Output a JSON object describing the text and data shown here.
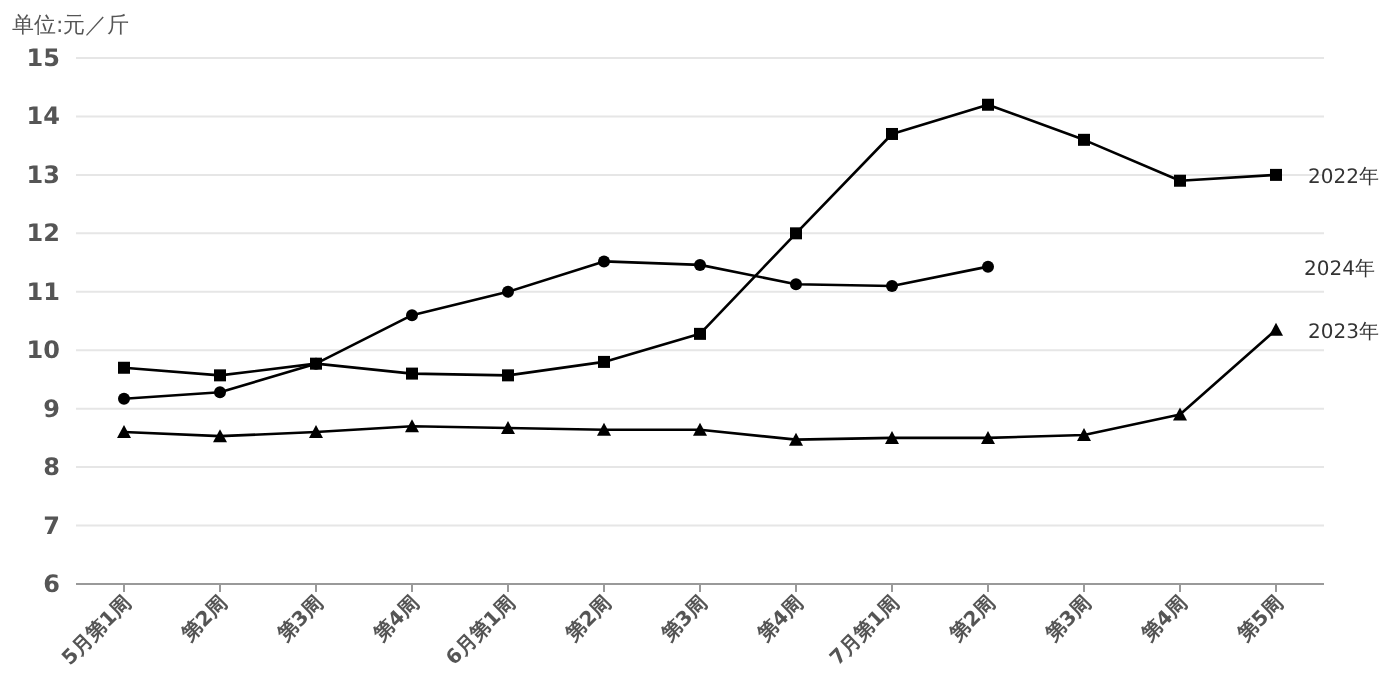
{
  "chart_data": {
    "type": "line",
    "ylabel": "单位:元／斤",
    "categories": [
      "5月第1周",
      "第2周",
      "第3周",
      "第4周",
      "6月第1周",
      "第2周",
      "第3周",
      "第4周",
      "7月第1周",
      "第2周",
      "第3周",
      "第4周",
      "第5周"
    ],
    "series": [
      {
        "name": "2022年",
        "color": "#000000",
        "marker": "square",
        "values": [
          9.7,
          9.57,
          9.77,
          9.6,
          9.57,
          9.8,
          10.28,
          12.0,
          13.7,
          14.2,
          13.6,
          12.9,
          13.0
        ]
      },
      {
        "name": "2024年",
        "color": "#000000",
        "marker": "circle",
        "values": [
          9.17,
          9.28,
          9.77,
          10.6,
          11.0,
          11.52,
          11.46,
          11.13,
          11.1,
          11.43,
          null,
          null,
          null
        ]
      },
      {
        "name": "2023年",
        "color": "#000000",
        "marker": "triangle",
        "values": [
          8.6,
          8.53,
          8.6,
          8.7,
          8.67,
          8.64,
          8.64,
          8.47,
          8.5,
          8.5,
          8.55,
          8.9,
          10.35
        ]
      }
    ],
    "ylim": [
      6,
      15
    ],
    "yticks": [
      6,
      7,
      8,
      9,
      10,
      11,
      12,
      13,
      14,
      15
    ],
    "grid": "y",
    "line_style": "solid"
  }
}
